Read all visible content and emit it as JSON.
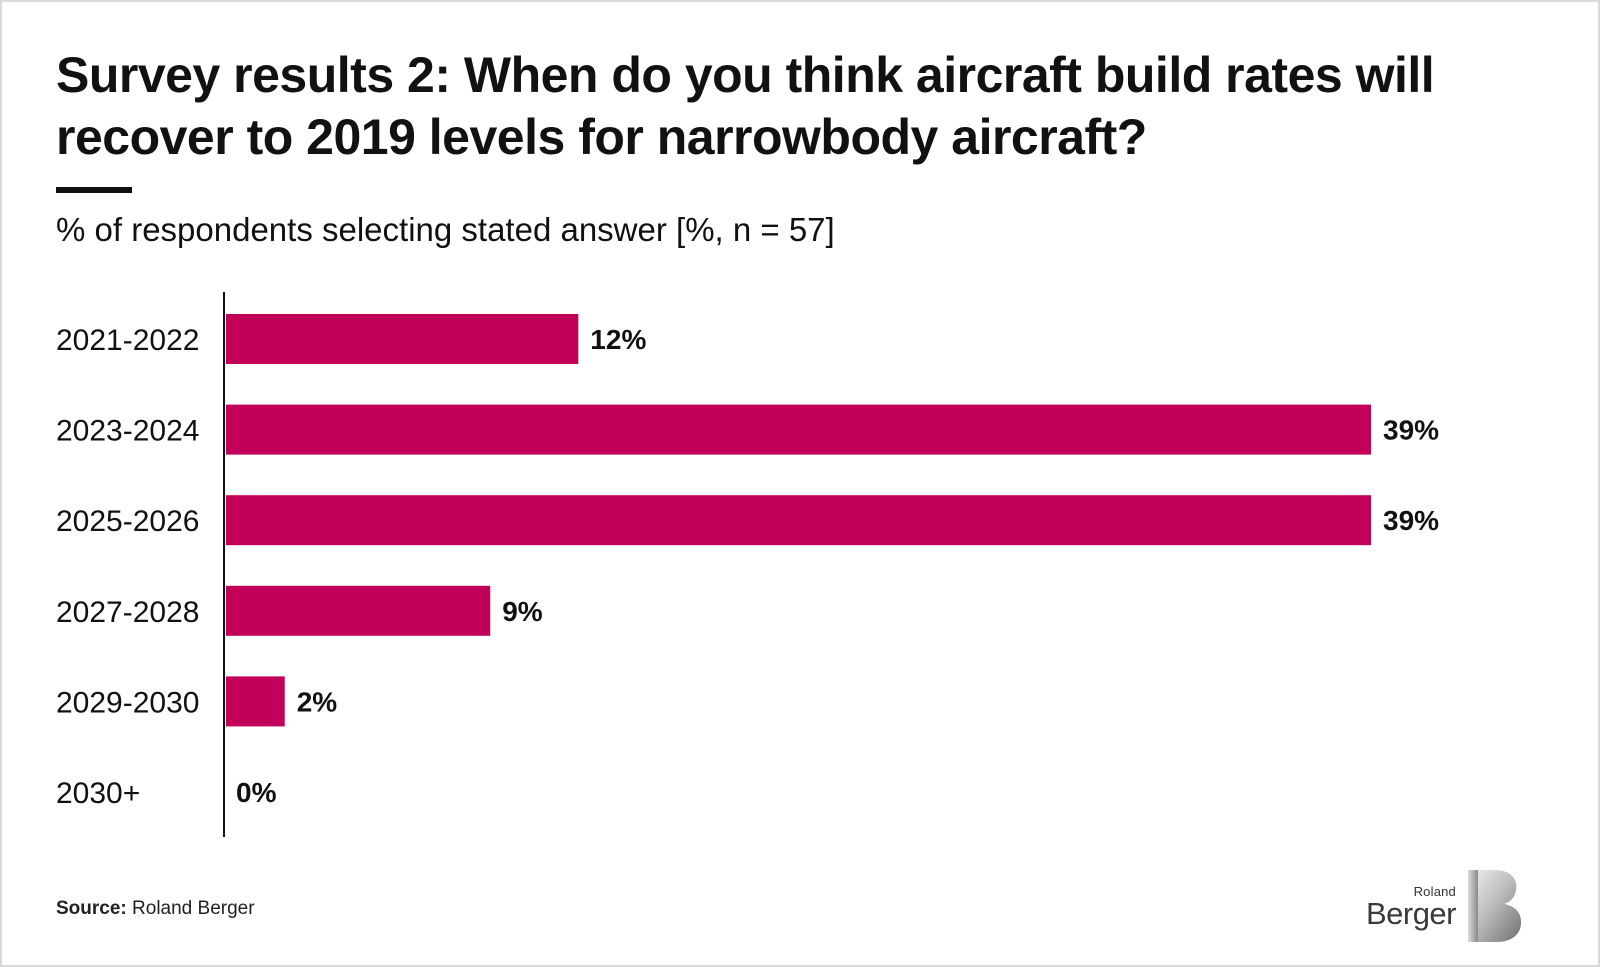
{
  "title": "Survey results 2: When do you think aircraft build rates will recover to 2019 levels for narrowbody aircraft?",
  "subtitle": "% of respondents selecting stated answer [%, n = 57]",
  "source": {
    "label": "Source:",
    "text": "Roland Berger"
  },
  "logo": {
    "line1": "Roland",
    "line2": "Berger",
    "mark_icon": "roland-berger-b-mark-icon"
  },
  "colors": {
    "bar": "#c2005a",
    "text": "#111111",
    "axis": "#111111"
  },
  "chart_data": {
    "type": "bar",
    "orientation": "horizontal",
    "title": "Survey results 2: When do you think aircraft build rates will recover to 2019 levels for narrowbody aircraft?",
    "subtitle": "% of respondents selecting stated answer [%, n = 57]",
    "categories": [
      "2021-2022",
      "2023-2024",
      "2025-2026",
      "2027-2028",
      "2029-2030",
      "2030+"
    ],
    "values": [
      12,
      39,
      39,
      9,
      2,
      0
    ],
    "value_labels": [
      "12%",
      "39%",
      "39%",
      "9%",
      "2%",
      "0%"
    ],
    "xlim": [
      0,
      39
    ],
    "xlabel": "",
    "ylabel": "",
    "grid": false,
    "legend": "none"
  }
}
